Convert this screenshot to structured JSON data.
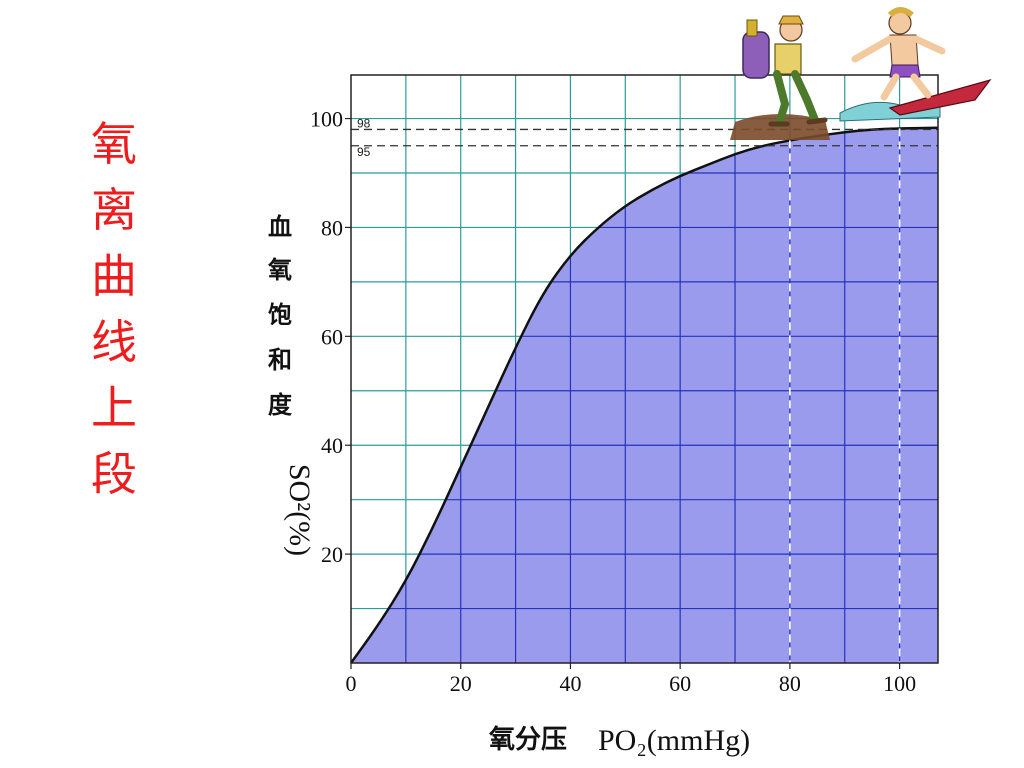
{
  "side_title": [
    "氧",
    "离",
    "曲",
    "线",
    "上",
    "段"
  ],
  "colors": {
    "side_title": "#ee1c1c",
    "area_fill": "#9b9bee",
    "grid_over_area": "#2433b8",
    "grid_outside_area": "#2a9d9a",
    "curve": "#111111",
    "reference_line_over_area": "#ffffff",
    "reference_line_outside_area": "#333333"
  },
  "illustration": {
    "left_figure": "hiker-with-backpack-icon",
    "right_figure": "surfer-icon"
  },
  "chart_data": {
    "type": "area",
    "title": "",
    "xlabel_prefix": "氧分压",
    "xlabel": "PO₂(mmHg)",
    "ylabel_chars": [
      "血",
      "氧",
      "饱",
      "和",
      "度"
    ],
    "ylabel": "SO²(%)",
    "xlim": [
      0,
      107
    ],
    "ylim": [
      0,
      108
    ],
    "x_ticks": [
      0,
      20,
      40,
      60,
      80,
      100
    ],
    "x_tick_labels": [
      "0",
      "20",
      "40",
      "60",
      "80",
      "100"
    ],
    "y_ticks": [
      20,
      40,
      60,
      80,
      100
    ],
    "y_tick_labels": [
      "20",
      "40",
      "60",
      "80",
      "100"
    ],
    "grid": true,
    "grid_step_x": 10,
    "grid_step_y": 10,
    "series": [
      {
        "x": [
          0,
          5,
          10,
          15,
          20,
          25,
          30,
          35,
          40,
          45,
          50,
          55,
          60,
          65,
          70,
          75,
          80,
          85,
          90,
          95,
          100,
          107
        ],
        "values": [
          0,
          7,
          15,
          25,
          36,
          47,
          58,
          68,
          75,
          80,
          84,
          87,
          89.5,
          91.5,
          93.5,
          95,
          96,
          96.8,
          97.5,
          98,
          98.2,
          98.3
        ]
      }
    ],
    "reference_lines": [
      {
        "axis": "y",
        "value": 98,
        "label": "98"
      },
      {
        "axis": "y",
        "value": 95,
        "label": "95"
      },
      {
        "axis": "x",
        "value": 80
      },
      {
        "axis": "x",
        "value": 100
      }
    ]
  }
}
